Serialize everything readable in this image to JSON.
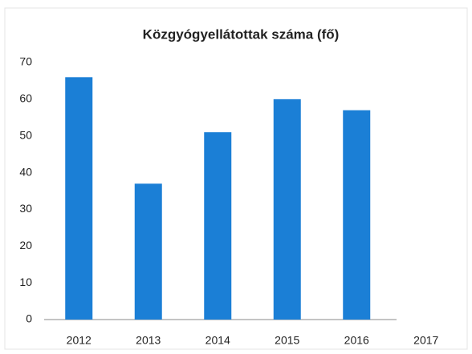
{
  "chart_data": {
    "type": "bar",
    "title": "Közgyógyellátottak száma (fő)",
    "categories": [
      "2012",
      "2013",
      "2014",
      "2015",
      "2016",
      "2017"
    ],
    "values": [
      66,
      37,
      51,
      60,
      57,
      null
    ],
    "color": "#1b7fd6",
    "ylim": [
      0,
      70
    ],
    "yticks": [
      0,
      10,
      20,
      30,
      40,
      50,
      60,
      70
    ],
    "grid": false
  }
}
